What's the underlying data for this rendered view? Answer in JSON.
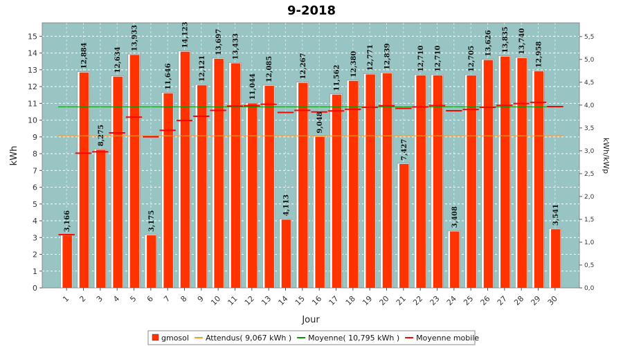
{
  "chart_data": {
    "type": "bar",
    "title": "9-2018",
    "xlabel": "Jour",
    "ylabel": "kWh",
    "y2label": "kWh/kWp",
    "ylim": [
      0,
      15.8
    ],
    "y2lim": [
      0,
      5.8
    ],
    "yticks": [
      0,
      1,
      2,
      3,
      4,
      5,
      6,
      7,
      8,
      9,
      10,
      11,
      12,
      13,
      14,
      15
    ],
    "y2ticks": [
      "0,0",
      "0,5",
      "1,0",
      "1,5",
      "2,0",
      "2,5",
      "3,0",
      "3,5",
      "4,0",
      "4,5",
      "5,0",
      "5,5"
    ],
    "grid": true,
    "legend_position": "bottom",
    "categories": [
      "1",
      "2",
      "3",
      "4",
      "5",
      "6",
      "7",
      "8",
      "9",
      "10",
      "11",
      "12",
      "13",
      "14",
      "15",
      "16",
      "17",
      "18",
      "19",
      "20",
      "21",
      "22",
      "23",
      "24",
      "25",
      "26",
      "27",
      "28",
      "29",
      "30"
    ],
    "series": [
      {
        "name": "gmosol",
        "color": "#ff3300",
        "values": [
          3.166,
          12.884,
          8.275,
          12.634,
          13.933,
          3.175,
          11.646,
          14.123,
          12.121,
          13.697,
          13.433,
          11.044,
          12.085,
          4.113,
          12.267,
          9.048,
          11.562,
          12.38,
          12.771,
          12.839,
          7.427,
          12.71,
          12.71,
          3.408,
          12.705,
          13.626,
          13.835,
          13.74,
          12.958,
          3.541
        ],
        "labels": [
          "3,166",
          "12,884",
          "8,275",
          "12,634",
          "13,933",
          "3,175",
          "11,646",
          "14,123",
          "12,121",
          "13,697",
          "13,433",
          "11,044",
          "12,085",
          "4,113",
          "12,267",
          "9,048",
          "11,562",
          "12,380",
          "12,771",
          "12,839",
          "7,427",
          "12,710",
          "12,710",
          "3,408",
          "12,705",
          "13,626",
          "13,835",
          "13,740",
          "12,958",
          "3,541"
        ]
      },
      {
        "name": "Attendus( 9,067 kWh )",
        "color": "#ff9933",
        "value": 9.067
      },
      {
        "name": "Moyenne( 10,795 kWh )",
        "color": "#009900",
        "value": 10.795
      },
      {
        "name": "Moyenne mobile",
        "color": "#ff0000",
        "values": [
          3.17,
          8.03,
          8.11,
          9.24,
          10.18,
          9.01,
          9.39,
          9.98,
          10.23,
          10.58,
          10.84,
          10.86,
          10.95,
          10.46,
          10.58,
          10.49,
          10.55,
          10.65,
          10.76,
          10.86,
          10.7,
          10.79,
          10.87,
          10.56,
          10.64,
          10.76,
          10.88,
          10.99,
          11.06,
          10.81
        ]
      }
    ]
  }
}
